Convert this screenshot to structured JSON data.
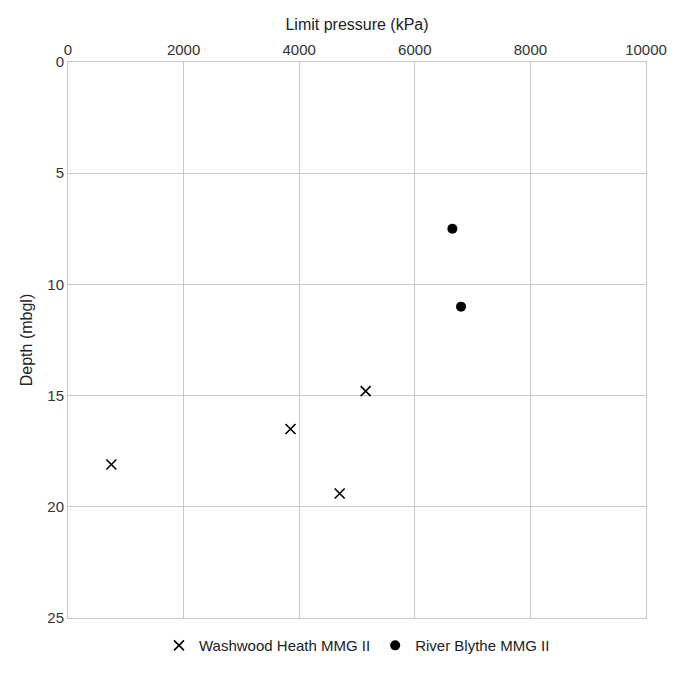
{
  "chart_data": {
    "type": "scatter",
    "x_label": "Limit pressure (kPa)",
    "y_label": "Depth (mbgl)",
    "series": [
      {
        "name": "Washwood Heath MMG II",
        "color": "#000000",
        "marker": "x",
        "x": [
          5150,
          3850,
          750,
          4700
        ],
        "values": [
          14.8,
          16.5,
          18.1,
          19.4
        ]
      },
      {
        "name": "River Blythe MMG II",
        "color": "#000000",
        "marker": "circle",
        "x": [
          6650,
          6800
        ],
        "values": [
          7.5,
          11.0
        ]
      }
    ],
    "xlim": [
      0,
      10000
    ],
    "xticks": [
      0,
      2000,
      4000,
      6000,
      8000,
      10000
    ],
    "ylim": [
      0,
      25
    ],
    "yticks": [
      0,
      5,
      10,
      15,
      20,
      25
    ],
    "grid": true,
    "legend": "bottom"
  }
}
